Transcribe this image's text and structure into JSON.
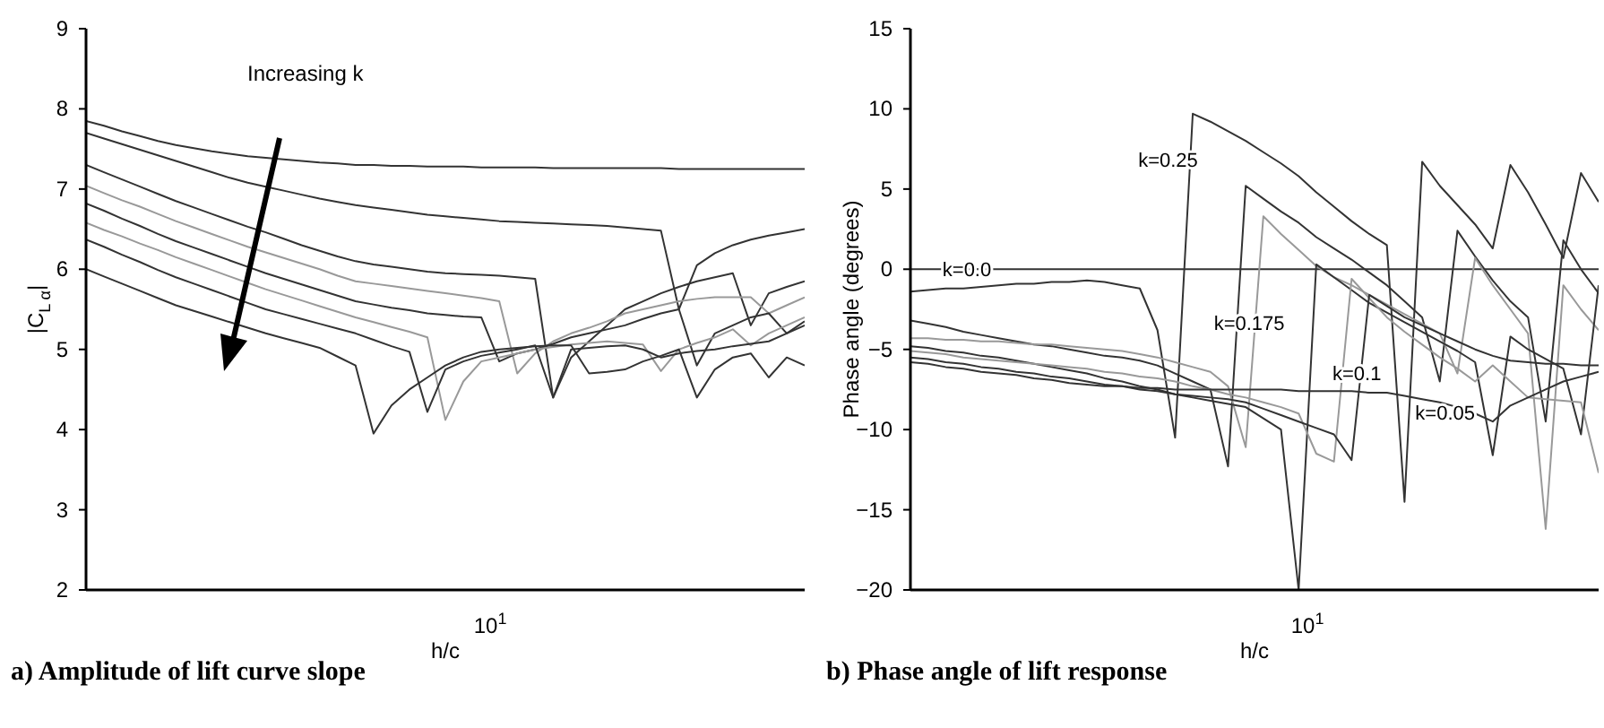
{
  "chart_data": [
    {
      "type": "line",
      "title": "a) Amplitude of lift curve slope",
      "xlabel": "h/c",
      "ylabel": "|C$_{L α}$|",
      "categories": [
        null,
        null,
        null,
        null,
        null,
        null,
        null,
        null,
        null,
        null,
        null,
        null,
        null,
        null,
        null,
        null,
        null,
        null,
        null,
        null,
        null,
        null,
        null,
        null,
        null,
        null,
        null,
        null,
        null,
        null,
        null,
        null,
        null,
        null,
        null,
        null,
        null,
        null,
        null,
        null,
        null
      ],
      "ylim": [
        2,
        9
      ],
      "yticks": [
        2,
        3,
        4,
        5,
        6,
        7,
        8,
        9
      ],
      "annotations": [
        "Increasing k",
        "10$^{1}$"
      ],
      "series": [
        {
          "color": "#333333",
          "values": [
            7.85,
            7.79,
            7.72,
            7.66,
            7.6,
            7.55,
            7.51,
            7.47,
            7.44,
            7.41,
            7.39,
            7.37,
            7.35,
            7.33,
            7.32,
            7.3,
            7.3,
            7.29,
            7.29,
            7.28,
            7.28,
            7.28,
            7.27,
            7.27,
            7.27,
            7.27,
            7.26,
            7.26,
            7.26,
            7.26,
            7.26,
            7.26,
            7.26,
            7.25,
            7.25,
            7.25,
            7.25,
            7.25,
            7.25,
            7.25,
            7.25
          ]
        },
        {
          "color": "#333333",
          "values": [
            7.7,
            7.63,
            7.56,
            7.49,
            7.42,
            7.35,
            7.28,
            7.21,
            7.14,
            7.08,
            7.03,
            6.98,
            6.93,
            6.88,
            6.84,
            6.8,
            6.77,
            6.74,
            6.71,
            6.68,
            6.66,
            6.64,
            6.62,
            6.6,
            6.59,
            6.58,
            6.57,
            6.56,
            6.55,
            6.54,
            6.52,
            6.5,
            6.48,
            5.5,
            6.05,
            6.2,
            6.3,
            6.37,
            6.42,
            6.46,
            6.5
          ]
        },
        {
          "color": "#333333",
          "values": [
            7.3,
            7.21,
            7.12,
            7.03,
            6.94,
            6.85,
            6.77,
            6.69,
            6.61,
            6.53,
            6.46,
            6.38,
            6.3,
            6.23,
            6.16,
            6.1,
            6.06,
            6.03,
            6.0,
            5.97,
            5.95,
            5.94,
            5.93,
            5.92,
            5.9,
            5.88,
            4.4,
            4.9,
            5.1,
            5.3,
            5.5,
            5.6,
            5.7,
            5.78,
            5.85,
            5.9,
            5.95,
            5.3,
            5.7,
            5.78,
            5.85
          ]
        },
        {
          "color": "#999999",
          "values": [
            7.04,
            6.95,
            6.86,
            6.78,
            6.69,
            6.6,
            6.52,
            6.44,
            6.36,
            6.28,
            6.21,
            6.14,
            6.07,
            6.0,
            5.92,
            5.85,
            5.82,
            5.79,
            5.76,
            5.73,
            5.7,
            5.67,
            5.64,
            5.6,
            4.7,
            4.95,
            5.1,
            5.2,
            5.27,
            5.35,
            5.45,
            5.5,
            5.55,
            5.6,
            5.63,
            5.65,
            5.65,
            5.65,
            5.45,
            5.55,
            5.65
          ]
        },
        {
          "color": "#333333",
          "values": [
            6.82,
            6.73,
            6.63,
            6.54,
            6.44,
            6.35,
            6.27,
            6.19,
            6.11,
            6.03,
            5.95,
            5.88,
            5.81,
            5.74,
            5.67,
            5.6,
            5.56,
            5.52,
            5.49,
            5.45,
            5.43,
            5.41,
            5.4,
            4.85,
            4.95,
            5.0,
            5.07,
            5.15,
            5.2,
            5.25,
            5.3,
            5.38,
            5.45,
            5.5,
            4.8,
            5.2,
            5.3,
            5.4,
            5.45,
            5.2,
            5.35
          ]
        },
        {
          "color": "#999999",
          "values": [
            6.58,
            6.49,
            6.41,
            6.32,
            6.24,
            6.15,
            6.07,
            5.99,
            5.91,
            5.83,
            5.75,
            5.68,
            5.61,
            5.54,
            5.47,
            5.4,
            5.34,
            5.28,
            5.22,
            5.15,
            4.12,
            4.6,
            4.85,
            4.9,
            4.95,
            5.0,
            5.03,
            5.06,
            5.08,
            5.1,
            5.08,
            5.06,
            4.73,
            5.0,
            5.08,
            5.15,
            5.25,
            5.05,
            5.2,
            5.3,
            5.4
          ]
        },
        {
          "color": "#333333",
          "values": [
            6.37,
            6.28,
            6.18,
            6.09,
            5.99,
            5.9,
            5.82,
            5.74,
            5.66,
            5.58,
            5.5,
            5.44,
            5.38,
            5.32,
            5.26,
            5.2,
            5.12,
            5.04,
            4.97,
            4.22,
            4.75,
            4.85,
            4.92,
            4.96,
            5.0,
            5.05,
            4.4,
            5.0,
            5.02,
            5.04,
            5.05,
            5.0,
            4.9,
            4.95,
            4.98,
            5.0,
            5.04,
            5.07,
            5.1,
            5.2,
            5.3
          ]
        },
        {
          "color": "#333333",
          "values": [
            6.0,
            5.91,
            5.82,
            5.73,
            5.64,
            5.55,
            5.48,
            5.41,
            5.34,
            5.27,
            5.2,
            5.14,
            5.08,
            5.02,
            4.91,
            4.8,
            3.95,
            4.3,
            4.5,
            4.65,
            4.8,
            4.9,
            4.97,
            5.0,
            5.02,
            5.04,
            5.05,
            5.05,
            4.7,
            4.72,
            4.75,
            4.85,
            4.92,
            5.0,
            4.4,
            4.75,
            4.9,
            4.95,
            4.65,
            4.9,
            4.8
          ]
        }
      ]
    },
    {
      "type": "line",
      "title": "b) Phase angle of lift response",
      "xlabel": "h/c",
      "ylabel": "Phase angle (degrees)",
      "categories": [
        null,
        null,
        null,
        null,
        null,
        null,
        null,
        null,
        null,
        null,
        null,
        null,
        null,
        null,
        null,
        null,
        null,
        null,
        null,
        null,
        null,
        null,
        null,
        null,
        null,
        null,
        null,
        null,
        null,
        null,
        null,
        null,
        null,
        null,
        null,
        null,
        null,
        null,
        null,
        null
      ],
      "ylim": [
        -20,
        15
      ],
      "yticks": [
        {
          "value": -20,
          "label": "−20"
        },
        {
          "value": -15,
          "label": "−15"
        },
        {
          "value": -10,
          "label": "−10"
        },
        {
          "value": -5,
          "label": "−5"
        },
        0,
        5,
        10,
        15
      ],
      "annotations": [
        "10$^{1}$",
        "k=0.0",
        "k=0.25",
        "k=0.175",
        "k=0.1",
        "k=0.05"
      ],
      "series": [
        {
          "color": "#333333",
          "values": [
            0,
            0,
            0,
            0,
            0,
            0,
            0,
            0,
            0,
            0,
            0,
            0,
            0,
            0,
            0,
            0,
            0,
            0,
            0,
            0,
            0,
            0,
            0,
            0,
            0,
            0,
            0,
            0,
            0,
            0,
            0,
            0,
            0,
            0,
            0,
            0,
            0,
            0,
            0,
            0
          ]
        },
        {
          "color": "#333333",
          "values": [
            -1.4,
            -1.3,
            -1.2,
            -1.2,
            -1.1,
            -1.0,
            -0.9,
            -0.9,
            -0.8,
            -0.8,
            -0.7,
            -0.8,
            -1.0,
            -1.2,
            -3.8,
            -10.5,
            9.7,
            9.2,
            8.6,
            8.0,
            7.3,
            6.6,
            5.8,
            4.8,
            3.9,
            3.0,
            2.2,
            1.5,
            -14.5,
            6.7,
            5.2,
            4.0,
            2.8,
            1.3,
            6.5,
            4.8,
            2.8,
            0.7,
            6.0,
            4.2
          ]
        },
        {
          "color": "#333333",
          "values": [
            -3.2,
            -3.4,
            -3.6,
            -3.9,
            -4.1,
            -4.3,
            -4.5,
            -4.7,
            -4.8,
            -5.0,
            -5.2,
            -5.4,
            -5.5,
            -5.7,
            -6.0,
            -6.5,
            -7.0,
            -7.5,
            -12.3,
            5.2,
            4.4,
            3.6,
            2.9,
            2.0,
            1.3,
            0.6,
            -0.2,
            -1.0,
            -2.0,
            -3.0,
            -7.0,
            2.4,
            0.8,
            -0.7,
            -2.0,
            -3.0,
            -9.5,
            1.8,
            0.0,
            -1.5
          ]
        },
        {
          "color": "#999999",
          "values": [
            -4.3,
            -4.3,
            -4.4,
            -4.4,
            -4.5,
            -4.5,
            -4.6,
            -4.7,
            -4.7,
            -4.8,
            -4.9,
            -5.0,
            -5.1,
            -5.3,
            -5.5,
            -5.8,
            -6.1,
            -6.4,
            -7.3,
            -11.1,
            3.3,
            2.2,
            1.2,
            0.2,
            -0.5,
            -1.0,
            -1.6,
            -2.2,
            -2.8,
            -3.4,
            -4.0,
            -6.5,
            0.7,
            -1.0,
            -2.5,
            -4.0,
            -16.2,
            -1.0,
            -2.5,
            -3.8
          ]
        },
        {
          "color": "#333333",
          "values": [
            -4.8,
            -4.9,
            -5.1,
            -5.2,
            -5.4,
            -5.5,
            -5.7,
            -5.9,
            -6.1,
            -6.3,
            -6.5,
            -6.8,
            -7.0,
            -7.3,
            -7.5,
            -7.8,
            -8.0,
            -8.2,
            -8.4,
            -8.6,
            -9.3,
            -10.0,
            -20,
            0.3,
            -0.5,
            -1.3,
            -2.1,
            -2.7,
            -3.3,
            -3.9,
            -4.5,
            -5.1,
            -5.8,
            -11.6,
            -4.2,
            -5.0,
            -5.6,
            -6.2,
            -10.3,
            -1.0
          ]
        },
        {
          "color": "#999999",
          "values": [
            -5.1,
            -5.2,
            -5.3,
            -5.5,
            -5.6,
            -5.7,
            -5.8,
            -5.9,
            -6.0,
            -6.1,
            -6.2,
            -6.4,
            -6.5,
            -6.7,
            -6.8,
            -7.0,
            -7.3,
            -7.5,
            -7.8,
            -8.0,
            -8.3,
            -8.6,
            -9.0,
            -11.5,
            -12.0,
            -0.6,
            -1.8,
            -3.0,
            -3.9,
            -4.7,
            -5.5,
            -6.2,
            -7.0,
            -6.0,
            -7.0,
            -8.0,
            -8.1,
            -8.2,
            -8.3,
            -12.7
          ]
        },
        {
          "color": "#333333",
          "values": [
            -5.5,
            -5.6,
            -5.8,
            -5.9,
            -6.1,
            -6.2,
            -6.4,
            -6.5,
            -6.7,
            -6.8,
            -7.0,
            -7.2,
            -7.3,
            -7.5,
            -7.6,
            -7.8,
            -7.9,
            -8.0,
            -8.1,
            -8.3,
            -8.7,
            -9.1,
            -9.5,
            -9.9,
            -10.3,
            -11.9,
            -1.6,
            -2.3,
            -3.0,
            -3.5,
            -4.0,
            -4.5,
            -5.0,
            -5.4,
            -5.7,
            -5.8,
            -5.9,
            -5.9,
            -6.0,
            -6.0
          ]
        },
        {
          "color": "#333333",
          "values": [
            -5.8,
            -5.9,
            -6.1,
            -6.2,
            -6.4,
            -6.5,
            -6.6,
            -6.8,
            -6.9,
            -7.1,
            -7.2,
            -7.3,
            -7.3,
            -7.4,
            -7.4,
            -7.5,
            -7.5,
            -7.5,
            -7.5,
            -7.5,
            -7.5,
            -7.5,
            -7.6,
            -7.6,
            -7.6,
            -7.6,
            -7.7,
            -7.7,
            -7.9,
            -8.1,
            -8.3,
            -8.6,
            -9.0,
            -9.5,
            -8.5,
            -8.0,
            -7.5,
            -7.0,
            -6.7,
            -6.4
          ]
        }
      ]
    }
  ]
}
